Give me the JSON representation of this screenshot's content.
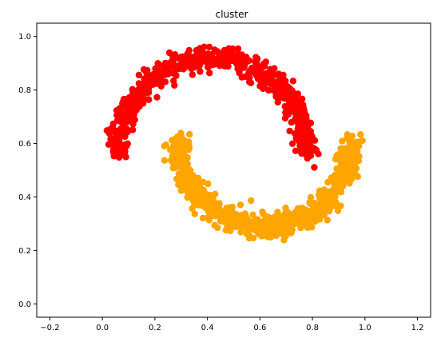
{
  "chart_data": {
    "type": "scatter",
    "title": "cluster",
    "xlabel": "",
    "ylabel": "",
    "xlim": [
      -0.25,
      1.25
    ],
    "ylim": [
      -0.05,
      1.05
    ],
    "xticks": [
      -0.2,
      0.0,
      0.2,
      0.4,
      0.6,
      0.8,
      1.0,
      1.2
    ],
    "xtick_labels": [
      "−0.2",
      "0.0",
      "0.2",
      "0.4",
      "0.6",
      "0.8",
      "1.0",
      "1.2"
    ],
    "yticks": [
      0.0,
      0.2,
      0.4,
      0.6,
      0.8,
      1.0
    ],
    "ytick_labels": [
      "0.0",
      "0.2",
      "0.4",
      "0.6",
      "0.8",
      "1.0"
    ],
    "grid": false,
    "series": [
      {
        "color": "#ff0000",
        "shape": "upper-moon",
        "center": [
          0.42,
          0.56
        ],
        "radius": 0.36,
        "angle_range_deg": [
          0,
          180
        ],
        "noise": 0.02,
        "count": 700
      },
      {
        "color": "#ffa500",
        "shape": "lower-moon",
        "center": [
          0.62,
          0.62
        ],
        "radius": 0.33,
        "angle_range_deg": [
          180,
          360
        ],
        "noise": 0.022,
        "count": 800
      }
    ]
  }
}
